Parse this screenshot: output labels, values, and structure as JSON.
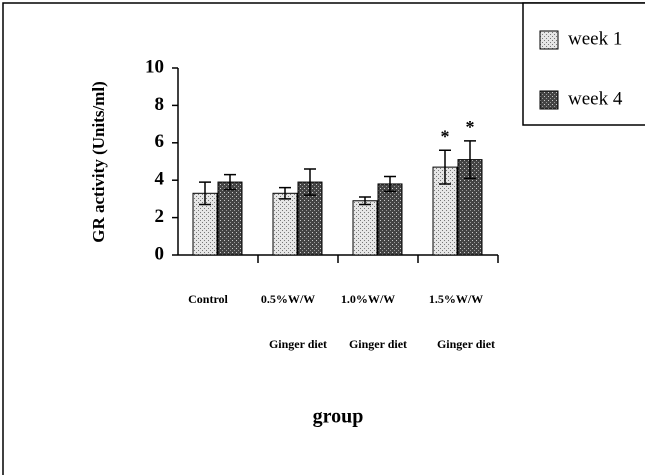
{
  "chart_data": {
    "type": "bar",
    "ylabel": "GR activity (Units/ml)",
    "xlabel": "group",
    "categories": [
      [
        "Control"
      ],
      [
        "0.5%W/W",
        "Ginger diet"
      ],
      [
        "1.0%W/W",
        "Ginger diet"
      ],
      [
        "1.5%W/W",
        "Ginger diet"
      ]
    ],
    "series": [
      {
        "name": "week 1",
        "color": "#d8d8d8",
        "values": [
          3.3,
          3.3,
          2.9,
          4.7
        ],
        "errors": [
          0.6,
          0.3,
          0.2,
          0.9
        ],
        "significance": [
          null,
          null,
          null,
          "*"
        ]
      },
      {
        "name": "week 4",
        "color": "#555555",
        "values": [
          3.9,
          3.9,
          3.8,
          5.1
        ],
        "errors": [
          0.4,
          0.7,
          0.4,
          1.0
        ],
        "significance": [
          null,
          null,
          null,
          "*"
        ]
      }
    ],
    "ylim": [
      0,
      10
    ],
    "yticks": [
      0,
      2,
      4,
      6,
      8,
      10
    ],
    "grid": false,
    "legend": "top-right"
  }
}
